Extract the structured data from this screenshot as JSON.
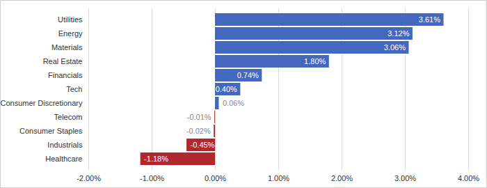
{
  "chart_data": {
    "type": "bar",
    "orientation": "horizontal",
    "categories": [
      "Utilities",
      "Energy",
      "Materials",
      "Real Estate",
      "Financials",
      "Tech",
      "Consumer Discretionary",
      "Telecom",
      "Consumer Staples",
      "Industrials",
      "Healthcare"
    ],
    "values": [
      3.61,
      3.12,
      3.06,
      1.8,
      0.74,
      0.4,
      0.06,
      -0.01,
      -0.02,
      -0.45,
      -1.18
    ],
    "value_labels": [
      "3.61%",
      "3.12%",
      "3.06%",
      "1.80%",
      "0.74%",
      "0.40%",
      "0.06%",
      "-0.01%",
      "-0.02%",
      "-0.45%",
      "-1.18%"
    ],
    "colors": [
      "#4468bd",
      "#4468bd",
      "#4468bd",
      "#4468bd",
      "#4468bd",
      "#4468bd",
      "#4468bd",
      "#b0282e",
      "#b0282e",
      "#b0282e",
      "#b0282e"
    ],
    "data_labels": true,
    "xlim": [
      -2,
      4
    ],
    "xticks": [
      {
        "value": -2,
        "label": "-2.00%"
      },
      {
        "value": -1,
        "label": "-1.00%"
      },
      {
        "value": 0,
        "label": "0.00%"
      },
      {
        "value": 1,
        "label": "1.00%"
      },
      {
        "value": 2,
        "label": "2.00%"
      },
      {
        "value": 3,
        "label": "3.00%"
      },
      {
        "value": 4,
        "label": "4.00%"
      }
    ],
    "grid": true
  }
}
